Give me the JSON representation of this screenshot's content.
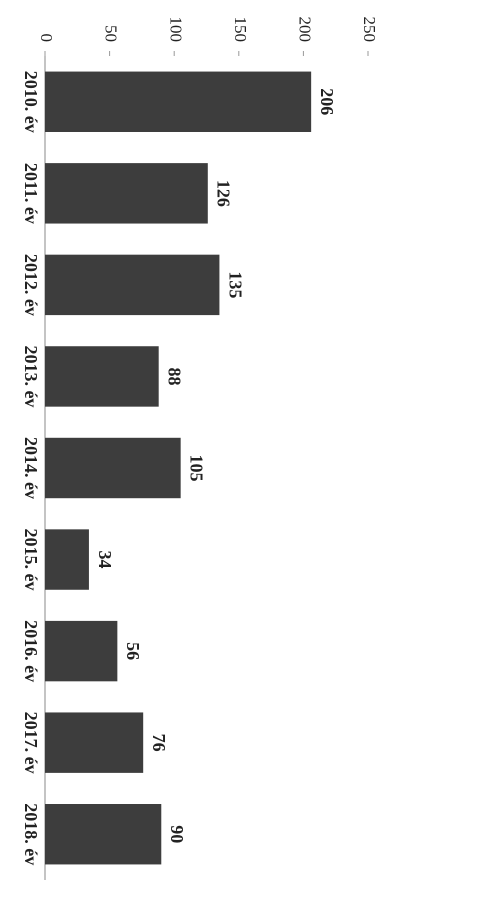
{
  "chart_data": {
    "type": "bar",
    "categories": [
      "2010. év",
      "2011. év",
      "2012. év",
      "2013. év",
      "2014. év",
      "2015. év",
      "2016. év",
      "2017. év",
      "2018. év"
    ],
    "values": [
      206,
      126,
      135,
      88,
      105,
      34,
      56,
      76,
      90
    ],
    "color": "#3d3d3d",
    "ylim": [
      0,
      250
    ],
    "yticks": [
      0,
      50,
      100,
      150,
      200,
      250
    ],
    "grid": false
  }
}
